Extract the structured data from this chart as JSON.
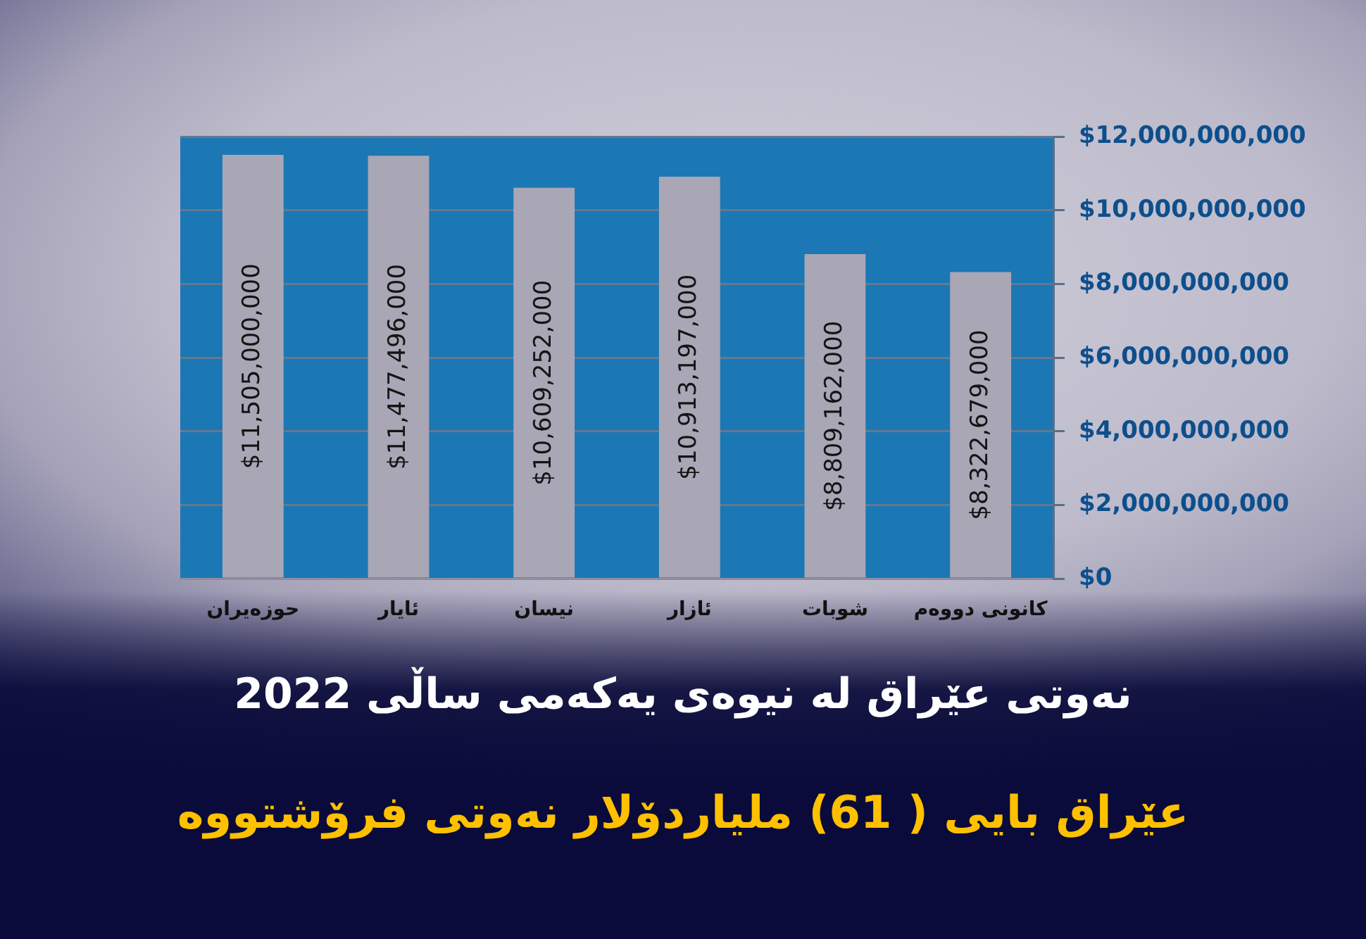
{
  "chart_data": {
    "type": "bar",
    "title": "نەوتی عێراق لە نیوەی یەکەمی ساڵی 2022",
    "subtitle": "عێراق بایی ( 61) ملیاردۆلار نەوتی فرۆشتووە",
    "categories": [
      "حوزەیران",
      "ئایار",
      "نیسان",
      "ئازار",
      "شوبات",
      "کانونی دووەم"
    ],
    "values": [
      11505000000,
      11477496000,
      10609252000,
      10913197000,
      8809162000,
      8322679000
    ],
    "color": "#a9a6b5",
    "value_labels": [
      "$11,505,000,000",
      "$11,477,496,000",
      "$10,609,252,000",
      "$10,913,197,000",
      "$8,809,162,000",
      "$8,322,679,000"
    ],
    "ylim": [
      0,
      12000000000
    ],
    "yticks": [
      {
        "value": 0,
        "label": "$0"
      },
      {
        "value": 2000000000,
        "label": "$2,000,000,000"
      },
      {
        "value": 4000000000,
        "label": "$4,000,000,000"
      },
      {
        "value": 6000000000,
        "label": "$6,000,000,000"
      },
      {
        "value": 8000000000,
        "label": "$8,000,000,000"
      },
      {
        "value": 10000000000,
        "label": "$10,000,000,000"
      },
      {
        "value": 12000000000,
        "label": "$12,000,000,000"
      }
    ],
    "grid": "y"
  }
}
